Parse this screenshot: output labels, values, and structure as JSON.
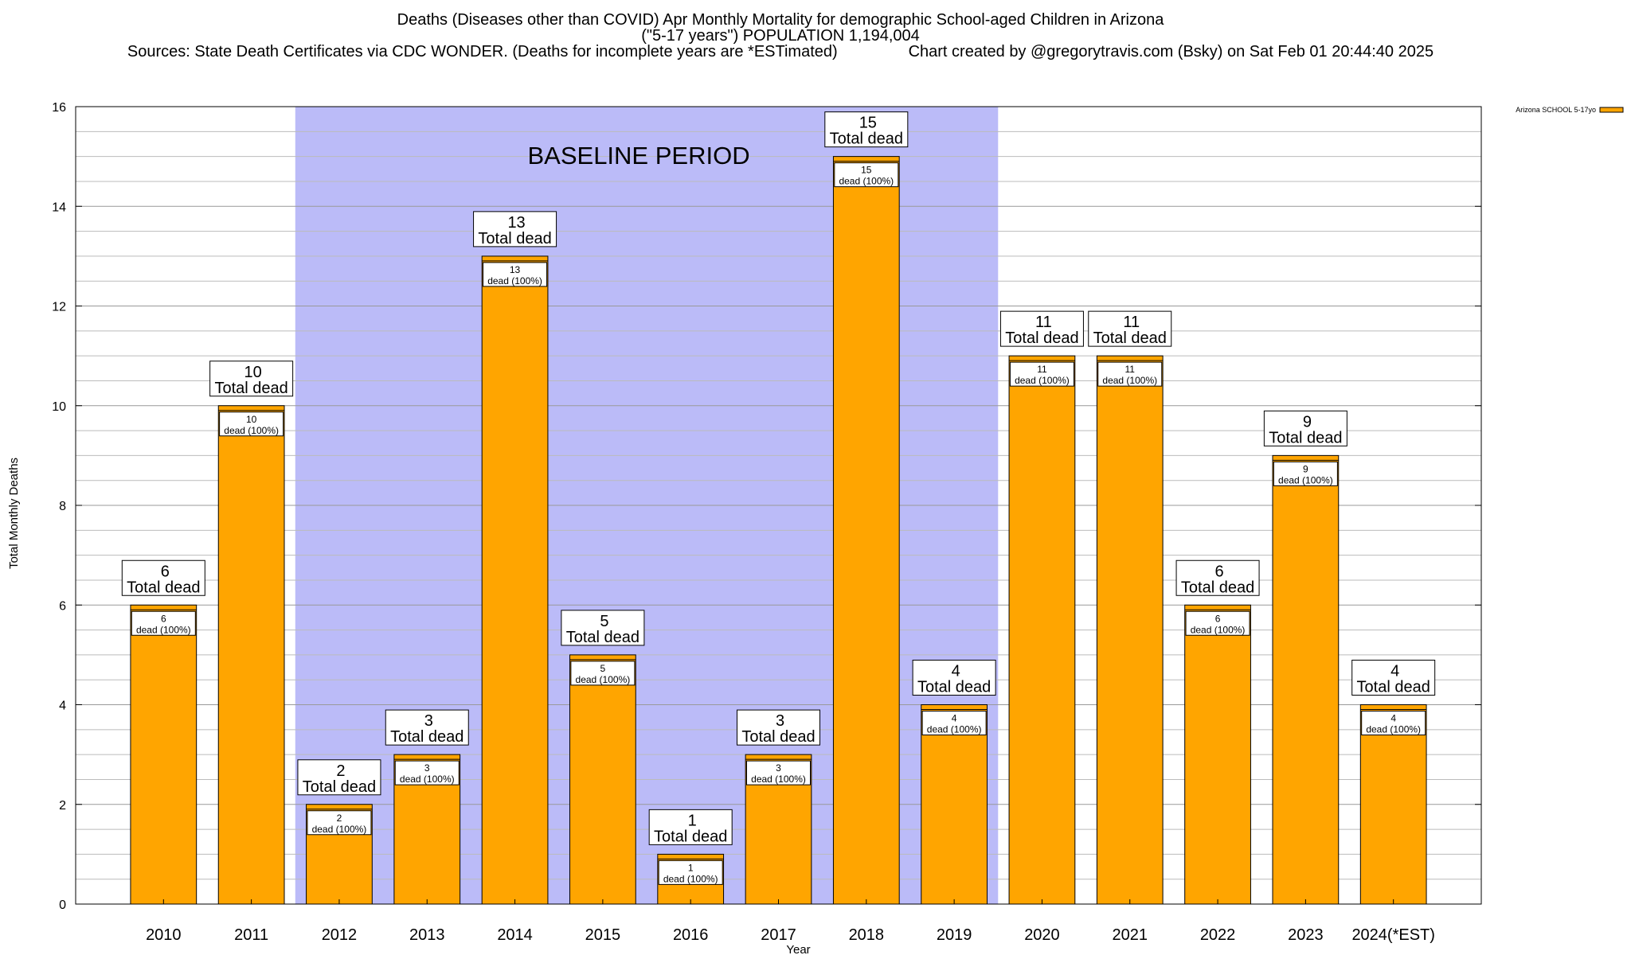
{
  "header": {
    "line1": "Deaths (Diseases other than COVID) Apr Monthly Mortality for demographic School-aged Children in Arizona",
    "line2": "(\"5-17 years\") POPULATION 1,194,004",
    "line3": "Sources: State Death Certificates via CDC WONDER. (Deaths for incomplete years are *ESTimated)                Chart created by @gregorytravis.com (Bsky) on Sat Feb 01 20:44:40 2025"
  },
  "colors": {
    "bar": "#FFA500",
    "baseline_band": "#BBBBF8",
    "grid": "#BBBBBB"
  },
  "chart_data": {
    "type": "bar",
    "xlabel": "Year",
    "ylabel": "Total Monthly Deaths",
    "ylim": [
      0,
      16
    ],
    "yticks": [
      0,
      2,
      4,
      6,
      8,
      10,
      12,
      14,
      16
    ],
    "categories": [
      "2010",
      "2011",
      "2012",
      "2013",
      "2014",
      "2015",
      "2016",
      "2017",
      "2018",
      "2019",
      "2020",
      "2021",
      "2022",
      "2023",
      "2024(*EST)"
    ],
    "series": [
      {
        "name": "Arizona SCHOOL 5-17yo",
        "values": [
          6,
          10,
          2,
          3,
          13,
          5,
          1,
          3,
          15,
          4,
          11,
          11,
          6,
          9,
          4
        ]
      }
    ],
    "baseline_region": {
      "from": "2012",
      "to": "2019",
      "label": "BASELINE PERIOD"
    },
    "total_label_suffix": "Total dead",
    "inner_label_suffix": "dead (100%)",
    "legend_position": "top-right",
    "grid": true
  }
}
